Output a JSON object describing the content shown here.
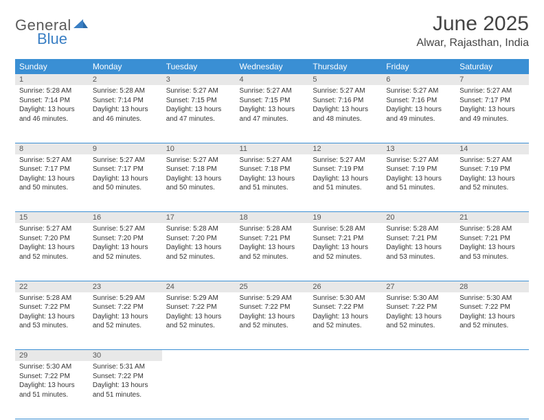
{
  "brand": {
    "general": "General",
    "blue": "Blue"
  },
  "title": "June 2025",
  "location": "Alwar, Rajasthan, India",
  "colors": {
    "header_bg": "#3a8fd4",
    "header_text": "#ffffff",
    "daynum_bg": "#e8e8e8",
    "row_border": "#3a8fd4",
    "logo_gray": "#5a5a5a",
    "logo_blue": "#3a7fc4"
  },
  "weekdays": [
    "Sunday",
    "Monday",
    "Tuesday",
    "Wednesday",
    "Thursday",
    "Friday",
    "Saturday"
  ],
  "weeks": [
    [
      {
        "n": "1",
        "sr": "5:28 AM",
        "ss": "7:14 PM",
        "dl": "13 hours and 46 minutes."
      },
      {
        "n": "2",
        "sr": "5:28 AM",
        "ss": "7:14 PM",
        "dl": "13 hours and 46 minutes."
      },
      {
        "n": "3",
        "sr": "5:27 AM",
        "ss": "7:15 PM",
        "dl": "13 hours and 47 minutes."
      },
      {
        "n": "4",
        "sr": "5:27 AM",
        "ss": "7:15 PM",
        "dl": "13 hours and 47 minutes."
      },
      {
        "n": "5",
        "sr": "5:27 AM",
        "ss": "7:16 PM",
        "dl": "13 hours and 48 minutes."
      },
      {
        "n": "6",
        "sr": "5:27 AM",
        "ss": "7:16 PM",
        "dl": "13 hours and 49 minutes."
      },
      {
        "n": "7",
        "sr": "5:27 AM",
        "ss": "7:17 PM",
        "dl": "13 hours and 49 minutes."
      }
    ],
    [
      {
        "n": "8",
        "sr": "5:27 AM",
        "ss": "7:17 PM",
        "dl": "13 hours and 50 minutes."
      },
      {
        "n": "9",
        "sr": "5:27 AM",
        "ss": "7:17 PM",
        "dl": "13 hours and 50 minutes."
      },
      {
        "n": "10",
        "sr": "5:27 AM",
        "ss": "7:18 PM",
        "dl": "13 hours and 50 minutes."
      },
      {
        "n": "11",
        "sr": "5:27 AM",
        "ss": "7:18 PM",
        "dl": "13 hours and 51 minutes."
      },
      {
        "n": "12",
        "sr": "5:27 AM",
        "ss": "7:19 PM",
        "dl": "13 hours and 51 minutes."
      },
      {
        "n": "13",
        "sr": "5:27 AM",
        "ss": "7:19 PM",
        "dl": "13 hours and 51 minutes."
      },
      {
        "n": "14",
        "sr": "5:27 AM",
        "ss": "7:19 PM",
        "dl": "13 hours and 52 minutes."
      }
    ],
    [
      {
        "n": "15",
        "sr": "5:27 AM",
        "ss": "7:20 PM",
        "dl": "13 hours and 52 minutes."
      },
      {
        "n": "16",
        "sr": "5:27 AM",
        "ss": "7:20 PM",
        "dl": "13 hours and 52 minutes."
      },
      {
        "n": "17",
        "sr": "5:28 AM",
        "ss": "7:20 PM",
        "dl": "13 hours and 52 minutes."
      },
      {
        "n": "18",
        "sr": "5:28 AM",
        "ss": "7:21 PM",
        "dl": "13 hours and 52 minutes."
      },
      {
        "n": "19",
        "sr": "5:28 AM",
        "ss": "7:21 PM",
        "dl": "13 hours and 52 minutes."
      },
      {
        "n": "20",
        "sr": "5:28 AM",
        "ss": "7:21 PM",
        "dl": "13 hours and 53 minutes."
      },
      {
        "n": "21",
        "sr": "5:28 AM",
        "ss": "7:21 PM",
        "dl": "13 hours and 53 minutes."
      }
    ],
    [
      {
        "n": "22",
        "sr": "5:28 AM",
        "ss": "7:22 PM",
        "dl": "13 hours and 53 minutes."
      },
      {
        "n": "23",
        "sr": "5:29 AM",
        "ss": "7:22 PM",
        "dl": "13 hours and 52 minutes."
      },
      {
        "n": "24",
        "sr": "5:29 AM",
        "ss": "7:22 PM",
        "dl": "13 hours and 52 minutes."
      },
      {
        "n": "25",
        "sr": "5:29 AM",
        "ss": "7:22 PM",
        "dl": "13 hours and 52 minutes."
      },
      {
        "n": "26",
        "sr": "5:30 AM",
        "ss": "7:22 PM",
        "dl": "13 hours and 52 minutes."
      },
      {
        "n": "27",
        "sr": "5:30 AM",
        "ss": "7:22 PM",
        "dl": "13 hours and 52 minutes."
      },
      {
        "n": "28",
        "sr": "5:30 AM",
        "ss": "7:22 PM",
        "dl": "13 hours and 52 minutes."
      }
    ],
    [
      {
        "n": "29",
        "sr": "5:30 AM",
        "ss": "7:22 PM",
        "dl": "13 hours and 51 minutes."
      },
      {
        "n": "30",
        "sr": "5:31 AM",
        "ss": "7:22 PM",
        "dl": "13 hours and 51 minutes."
      },
      null,
      null,
      null,
      null,
      null
    ]
  ],
  "labels": {
    "sunrise": "Sunrise:",
    "sunset": "Sunset:",
    "daylight": "Daylight:"
  }
}
